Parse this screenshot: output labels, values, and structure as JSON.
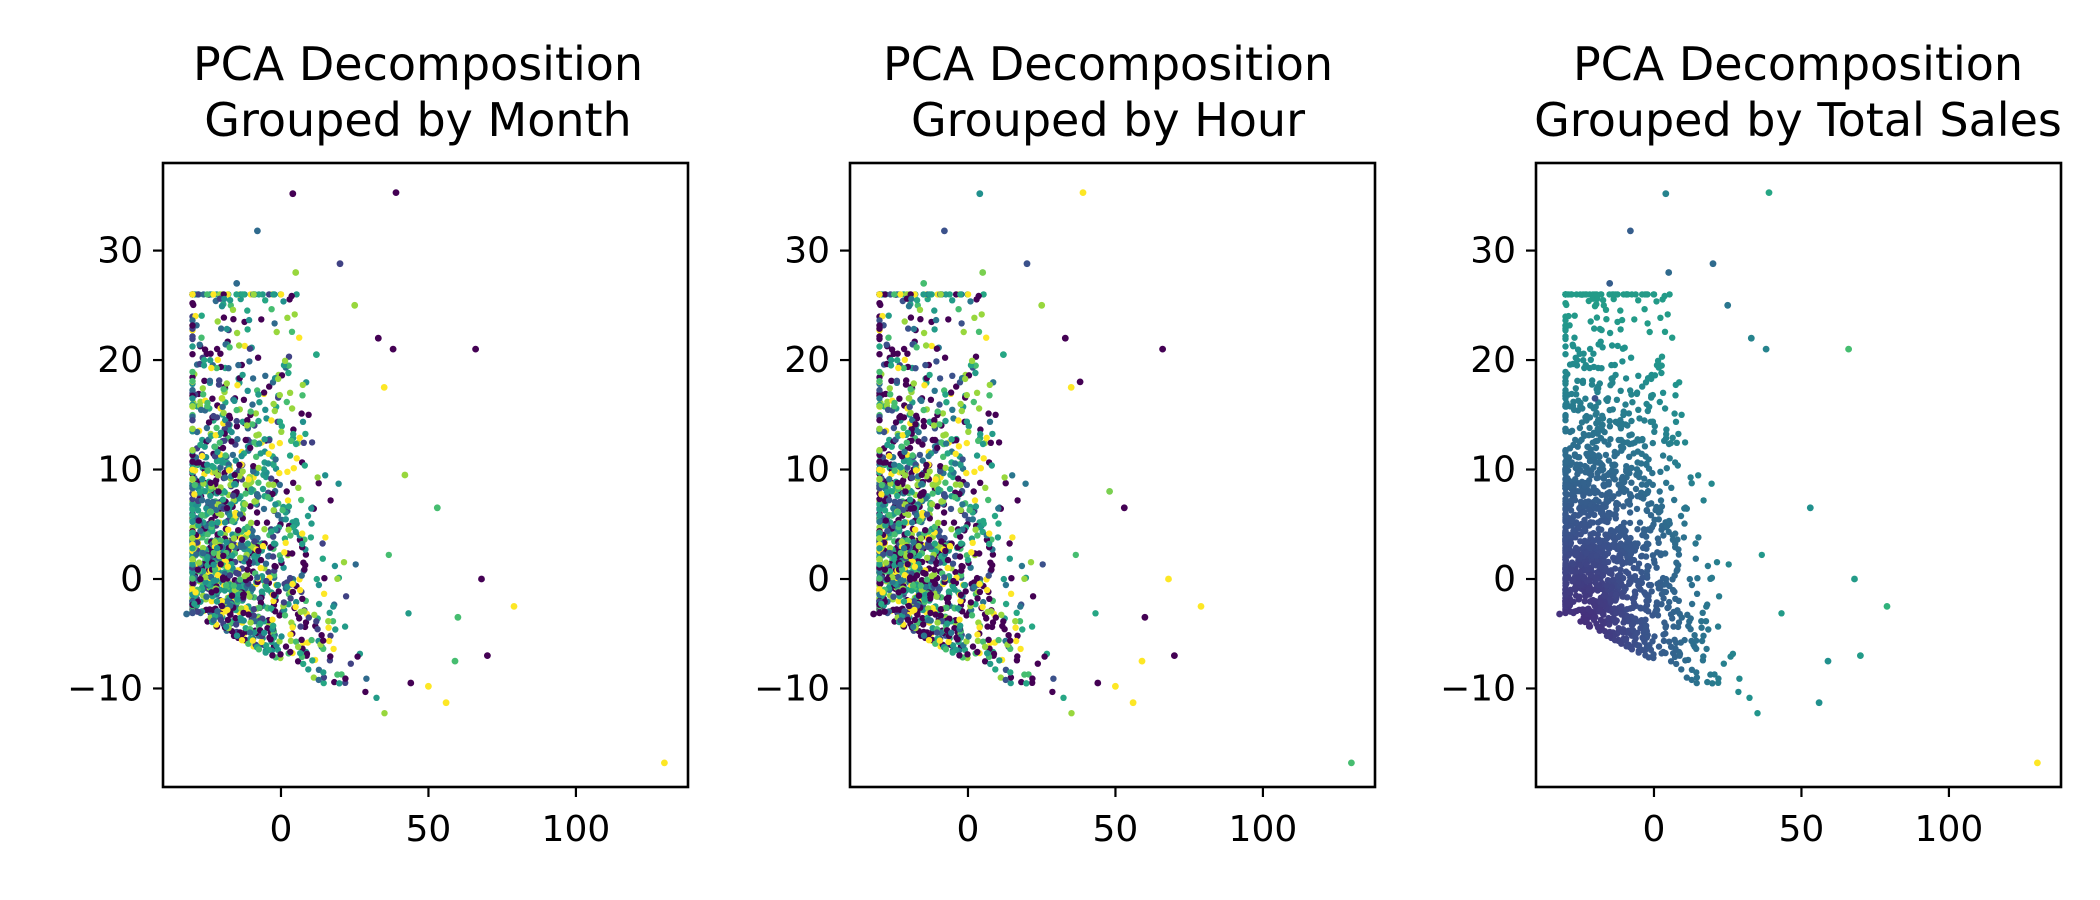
{
  "chart_data": [
    {
      "type": "scatter",
      "title_lines": [
        "PCA Decomposition",
        "Grouped by Month"
      ],
      "color_by": "month",
      "colormap": "viridis",
      "xlim": [
        -40,
        138
      ],
      "ylim": [
        -19,
        38
      ],
      "xticks": [
        0,
        50,
        100
      ],
      "yticks": [
        -10,
        0,
        10,
        20,
        30
      ],
      "xtick_labels": [
        "0",
        "50",
        "100"
      ],
      "ytick_labels": [
        "−10",
        "0",
        "10",
        "20",
        "30"
      ],
      "points": [
        {
          "x": 4,
          "y": 35.2,
          "c": 0.0
        },
        {
          "x": 39,
          "y": 35.3,
          "c": 0.0
        },
        {
          "x": -8,
          "y": 31.8,
          "c": 0.35
        },
        {
          "x": 20,
          "y": 28.8,
          "c": 0.2
        },
        {
          "x": 5,
          "y": 28,
          "c": 0.85
        },
        {
          "x": 66,
          "y": 21,
          "c": 0.0
        },
        {
          "x": 130,
          "y": -16.8,
          "c": 1.0
        },
        {
          "x": 79,
          "y": -2.5,
          "c": 1.0
        },
        {
          "x": 70,
          "y": -7,
          "c": 0.0
        },
        {
          "x": 68,
          "y": 0,
          "c": 0.0
        },
        {
          "x": 56,
          "y": -11.3,
          "c": 1.0
        },
        {
          "x": 59,
          "y": -7.5,
          "c": 0.7
        },
        {
          "x": 53,
          "y": 6.5,
          "c": 0.7
        },
        {
          "x": 42,
          "y": 9.5,
          "c": 0.85
        },
        {
          "x": 33,
          "y": 22,
          "c": 0.0
        },
        {
          "x": 38,
          "y": 21,
          "c": 0.0
        },
        {
          "x": 25,
          "y": 25,
          "c": 0.85
        },
        {
          "x": -15,
          "y": 27,
          "c": 0.35
        },
        {
          "x": -20,
          "y": 16.5,
          "c": 0.9
        },
        {
          "x": -32,
          "y": -3.2,
          "c": 0.35
        },
        {
          "x": -30,
          "y": -3.1,
          "c": 0.25
        },
        {
          "x": 12,
          "y": 20.5,
          "c": 0.6
        },
        {
          "x": 35,
          "y": 17.5,
          "c": 1.0
        },
        {
          "x": 50,
          "y": -9.8,
          "c": 1.0
        },
        {
          "x": 44,
          "y": -9.5,
          "c": 0.0
        },
        {
          "x": 60,
          "y": -3.5,
          "c": 0.7
        }
      ],
      "cloud": {
        "count": 1500,
        "x_range": [
          -30,
          62
        ],
        "y_range": [
          -11,
          26
        ],
        "color_mode": "random_month",
        "palette": [
          0.0,
          0.0,
          0.2,
          0.35,
          0.5,
          0.6,
          0.7,
          0.85,
          1.0,
          0.55
        ]
      }
    },
    {
      "type": "scatter",
      "title_lines": [
        "PCA Decomposition",
        "Grouped by Hour"
      ],
      "color_by": "hour",
      "colormap": "viridis",
      "xlim": [
        -40,
        138
      ],
      "ylim": [
        -19,
        38
      ],
      "xticks": [
        0,
        50,
        100
      ],
      "yticks": [
        -10,
        0,
        10,
        20,
        30
      ],
      "xtick_labels": [
        "0",
        "50",
        "100"
      ],
      "ytick_labels": [
        "−10",
        "0",
        "10",
        "20",
        "30"
      ],
      "points": [
        {
          "x": 4,
          "y": 35.2,
          "c": 0.5
        },
        {
          "x": 39,
          "y": 35.3,
          "c": 1.0
        },
        {
          "x": -8,
          "y": 31.8,
          "c": 0.25
        },
        {
          "x": 20,
          "y": 28.8,
          "c": 0.25
        },
        {
          "x": 5,
          "y": 28,
          "c": 0.8
        },
        {
          "x": 66,
          "y": 21,
          "c": 0.0
        },
        {
          "x": 130,
          "y": -16.8,
          "c": 0.7
        },
        {
          "x": 79,
          "y": -2.5,
          "c": 1.0
        },
        {
          "x": 70,
          "y": -7,
          "c": 0.0
        },
        {
          "x": 68,
          "y": 0,
          "c": 1.0
        },
        {
          "x": 56,
          "y": -11.3,
          "c": 1.0
        },
        {
          "x": 59,
          "y": -7.5,
          "c": 1.0
        },
        {
          "x": 53,
          "y": 6.5,
          "c": 0.0
        },
        {
          "x": 48,
          "y": 8,
          "c": 0.8
        },
        {
          "x": 33,
          "y": 22,
          "c": 0.0
        },
        {
          "x": 38,
          "y": 18,
          "c": 0.0
        },
        {
          "x": 25,
          "y": 25,
          "c": 0.85
        },
        {
          "x": -15,
          "y": 27,
          "c": 0.7
        },
        {
          "x": -20,
          "y": 16.5,
          "c": 0.85
        },
        {
          "x": -32,
          "y": -3.2,
          "c": 0.0
        },
        {
          "x": -30,
          "y": -3.1,
          "c": 0.0
        },
        {
          "x": 12,
          "y": 20.5,
          "c": 0.6
        },
        {
          "x": 35,
          "y": 17.5,
          "c": 1.0
        },
        {
          "x": 50,
          "y": -9.8,
          "c": 1.0
        },
        {
          "x": 44,
          "y": -9.5,
          "c": 0.0
        },
        {
          "x": 60,
          "y": -3.5,
          "c": 0.0
        }
      ],
      "cloud": {
        "count": 1500,
        "x_range": [
          -30,
          62
        ],
        "y_range": [
          -11,
          26
        ],
        "color_mode": "random_hour",
        "palette": [
          0.0,
          0.0,
          0.0,
          0.25,
          0.4,
          0.55,
          0.7,
          0.85,
          1.0,
          0.6
        ]
      }
    },
    {
      "type": "scatter",
      "title_lines": [
        "PCA Decomposition",
        "Grouped by Total Sales"
      ],
      "color_by": "total_sales",
      "colormap": "viridis",
      "xlim": [
        -40,
        138
      ],
      "ylim": [
        -19,
        38
      ],
      "xticks": [
        0,
        50,
        100
      ],
      "yticks": [
        -10,
        0,
        10,
        20,
        30
      ],
      "xtick_labels": [
        "0",
        "50",
        "100"
      ],
      "ytick_labels": [
        "−10",
        "0",
        "10",
        "20",
        "30"
      ],
      "points": [
        {
          "x": 4,
          "y": 35.2,
          "c": 0.45
        },
        {
          "x": 39,
          "y": 35.3,
          "c": 0.6
        },
        {
          "x": -8,
          "y": 31.8,
          "c": 0.3
        },
        {
          "x": 20,
          "y": 28.8,
          "c": 0.35
        },
        {
          "x": 5,
          "y": 28,
          "c": 0.35
        },
        {
          "x": 66,
          "y": 21,
          "c": 0.7
        },
        {
          "x": 130,
          "y": -16.8,
          "c": 1.0
        },
        {
          "x": 79,
          "y": -2.5,
          "c": 0.65
        },
        {
          "x": 70,
          "y": -7,
          "c": 0.55
        },
        {
          "x": 68,
          "y": 0,
          "c": 0.55
        },
        {
          "x": 56,
          "y": -11.3,
          "c": 0.5
        },
        {
          "x": 59,
          "y": -7.5,
          "c": 0.5
        },
        {
          "x": 53,
          "y": 6.5,
          "c": 0.5
        },
        {
          "x": 33,
          "y": 22,
          "c": 0.45
        },
        {
          "x": 38,
          "y": 21,
          "c": 0.45
        },
        {
          "x": 25,
          "y": 25,
          "c": 0.4
        },
        {
          "x": -15,
          "y": 27,
          "c": 0.3
        },
        {
          "x": -20,
          "y": 16.5,
          "c": 0.25
        },
        {
          "x": -32,
          "y": -3.2,
          "c": 0.15
        },
        {
          "x": -30,
          "y": -3.1,
          "c": 0.15
        }
      ],
      "cloud": {
        "count": 1500,
        "x_range": [
          -30,
          62
        ],
        "y_range": [
          -11,
          26
        ],
        "color_mode": "by_x",
        "palette": [
          0.12,
          0.55
        ]
      }
    }
  ]
}
